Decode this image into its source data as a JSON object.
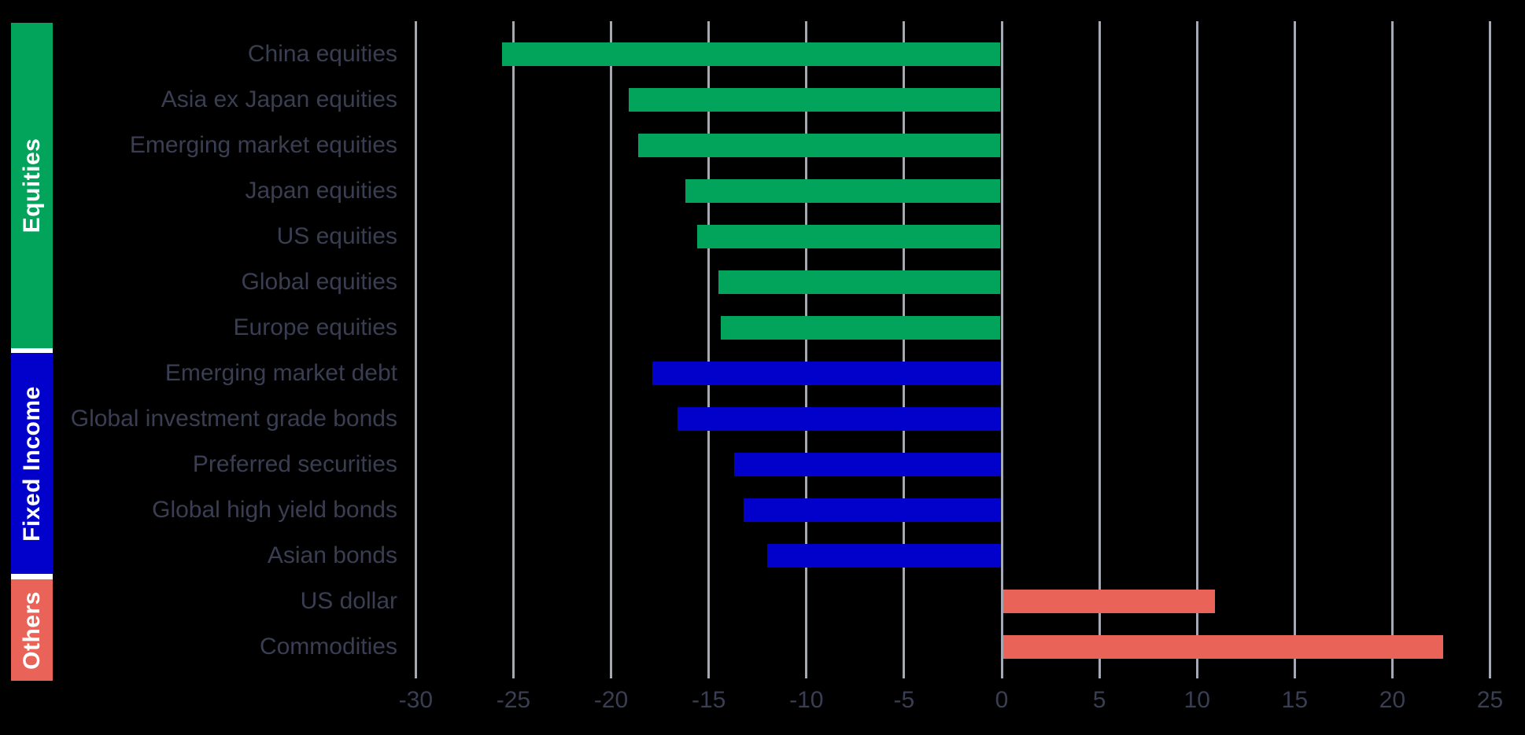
{
  "chart_data": {
    "type": "bar",
    "orientation": "horizontal",
    "title": "",
    "xlabel": "",
    "ylabel": "",
    "xlim": [
      -30,
      25
    ],
    "x_ticks": [
      -30,
      -25,
      -20,
      -15,
      -10,
      -5,
      0,
      5,
      10,
      15,
      20,
      25
    ],
    "grid": true,
    "legend_position": "left-color-bands",
    "background_color": "#000000",
    "gridline_color": "#a5a8b5",
    "text_color": "#3a3e52",
    "groups": [
      {
        "name": "Equities",
        "color": "#02a45c",
        "items": [
          {
            "label": "China equities",
            "value": -25.6
          },
          {
            "label": "Asia ex Japan equities",
            "value": -19.1
          },
          {
            "label": "Emerging market equities",
            "value": -18.6
          },
          {
            "label": "Japan equities",
            "value": -16.2
          },
          {
            "label": "US equities",
            "value": -15.6
          },
          {
            "label": "Global equities",
            "value": -14.5
          },
          {
            "label": "Europe equities",
            "value": -14.4
          }
        ]
      },
      {
        "name": "Fixed Income",
        "color": "#0101cb",
        "items": [
          {
            "label": "Emerging market debt",
            "value": -17.9
          },
          {
            "label": "Global investment grade bonds",
            "value": -16.6
          },
          {
            "label": "Preferred securities",
            "value": -13.7
          },
          {
            "label": "Global high yield bonds",
            "value": -13.2
          },
          {
            "label": "Asian bonds",
            "value": -12.0
          }
        ]
      },
      {
        "name": "Others",
        "color": "#e96358",
        "items": [
          {
            "label": "US dollar",
            "value": 10.9
          },
          {
            "label": "Commodities",
            "value": 22.6
          }
        ]
      }
    ]
  }
}
